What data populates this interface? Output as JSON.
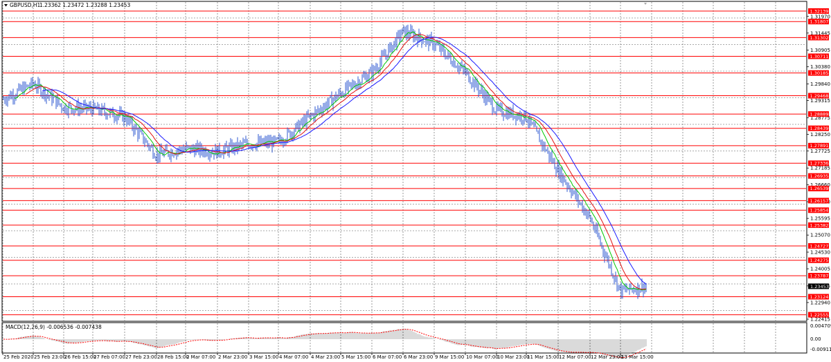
{
  "title_bar": {
    "symbol_label": "GBPUSD,H1",
    "ohlc": "1.23362 1.23472 1.23288 1.23453"
  },
  "macd": {
    "label": "MACD(12,26,9) -0.006536 -0.007438",
    "scale_top": "0.004709",
    "scale_zero": "0.00",
    "scale_bottom": "-0.009112"
  },
  "price_axis_labels": [
    "1.31970",
    "1.31445",
    "1.30905",
    "1.30380",
    "1.29840",
    "1.29315",
    "1.28775",
    "1.28250",
    "1.27725",
    "1.27185",
    "1.26660",
    "1.26120",
    "1.25595",
    "1.25070",
    "1.24530",
    "1.24005",
    "1.23465",
    "1.22940",
    "1.22415"
  ],
  "current_price": "1.23453",
  "levels": [
    "1.32139",
    "1.31807",
    "1.31302",
    "1.30711",
    "1.30185",
    "1.29468",
    "1.28889",
    "1.28439",
    "1.27891",
    "1.27336",
    "1.26935",
    "1.26539",
    "1.26157",
    "1.25854",
    "1.25382",
    "1.24727",
    "1.24275",
    "1.23787",
    "1.23124",
    "1.22555"
  ],
  "time_labels": [
    "25 Feb 2020",
    "25 Feb 23:00",
    "26 Feb 15:00",
    "27 Feb 07:00",
    "27 Feb 23:00",
    "28 Feb 15:00",
    "2 Mar 07:00",
    "2 Mar 23:00",
    "3 Mar 15:00",
    "4 Mar 07:00",
    "4 Mar 23:00",
    "5 Mar 15:00",
    "6 Mar 07:00",
    "6 Mar 23:00",
    "9 Mar 15:00",
    "10 Mar 07:00",
    "10 Mar 23:00",
    "11 Mar 15:00",
    "12 Mar 07:00",
    "12 Mar 23:00",
    "13 Mar 15:00"
  ],
  "colors": {
    "candles": "#2f59d1",
    "ma_fast": "#00c800",
    "ma_mid": "#e01010",
    "ma_slow": "#1a1aff",
    "level_line": "#ff0000",
    "level_label_bg": "#ff0000",
    "current_price_bg": "#000000",
    "grid": "#555555",
    "histogram": "#b4b4b4",
    "signal": "#ff0000"
  },
  "chart_data": {
    "type": "candlestick",
    "symbol": "GBPUSD",
    "timeframe": "H1",
    "ylim": [
      1.22415,
      1.32375
    ],
    "close_anchors": [
      [
        "25 Feb 2020",
        1.2935
      ],
      [
        "25 Feb 23:00",
        1.2985
      ],
      [
        "26 Feb 15:00",
        1.291
      ],
      [
        "27 Feb 07:00",
        1.2905
      ],
      [
        "27 Feb 23:00",
        1.288
      ],
      [
        "28 Feb 15:00",
        1.276
      ],
      [
        "2 Mar 07:00",
        1.278
      ],
      [
        "2 Mar 23:00",
        1.277
      ],
      [
        "3 Mar 15:00",
        1.2795
      ],
      [
        "4 Mar 07:00",
        1.28
      ],
      [
        "4 Mar 23:00",
        1.288
      ],
      [
        "5 Mar 15:00",
        1.2955
      ],
      [
        "6 Mar 07:00",
        1.302
      ],
      [
        "6 Mar 23:00",
        1.315
      ],
      [
        "9 Mar 15:00",
        1.311
      ],
      [
        "10 Mar 07:00",
        1.302
      ],
      [
        "10 Mar 23:00",
        1.29
      ],
      [
        "11 Mar 15:00",
        1.288
      ],
      [
        "12 Mar 07:00",
        1.271
      ],
      [
        "12 Mar 23:00",
        1.256
      ],
      [
        "13 Mar 15:00",
        1.233
      ]
    ],
    "last_close": 1.23453
  }
}
